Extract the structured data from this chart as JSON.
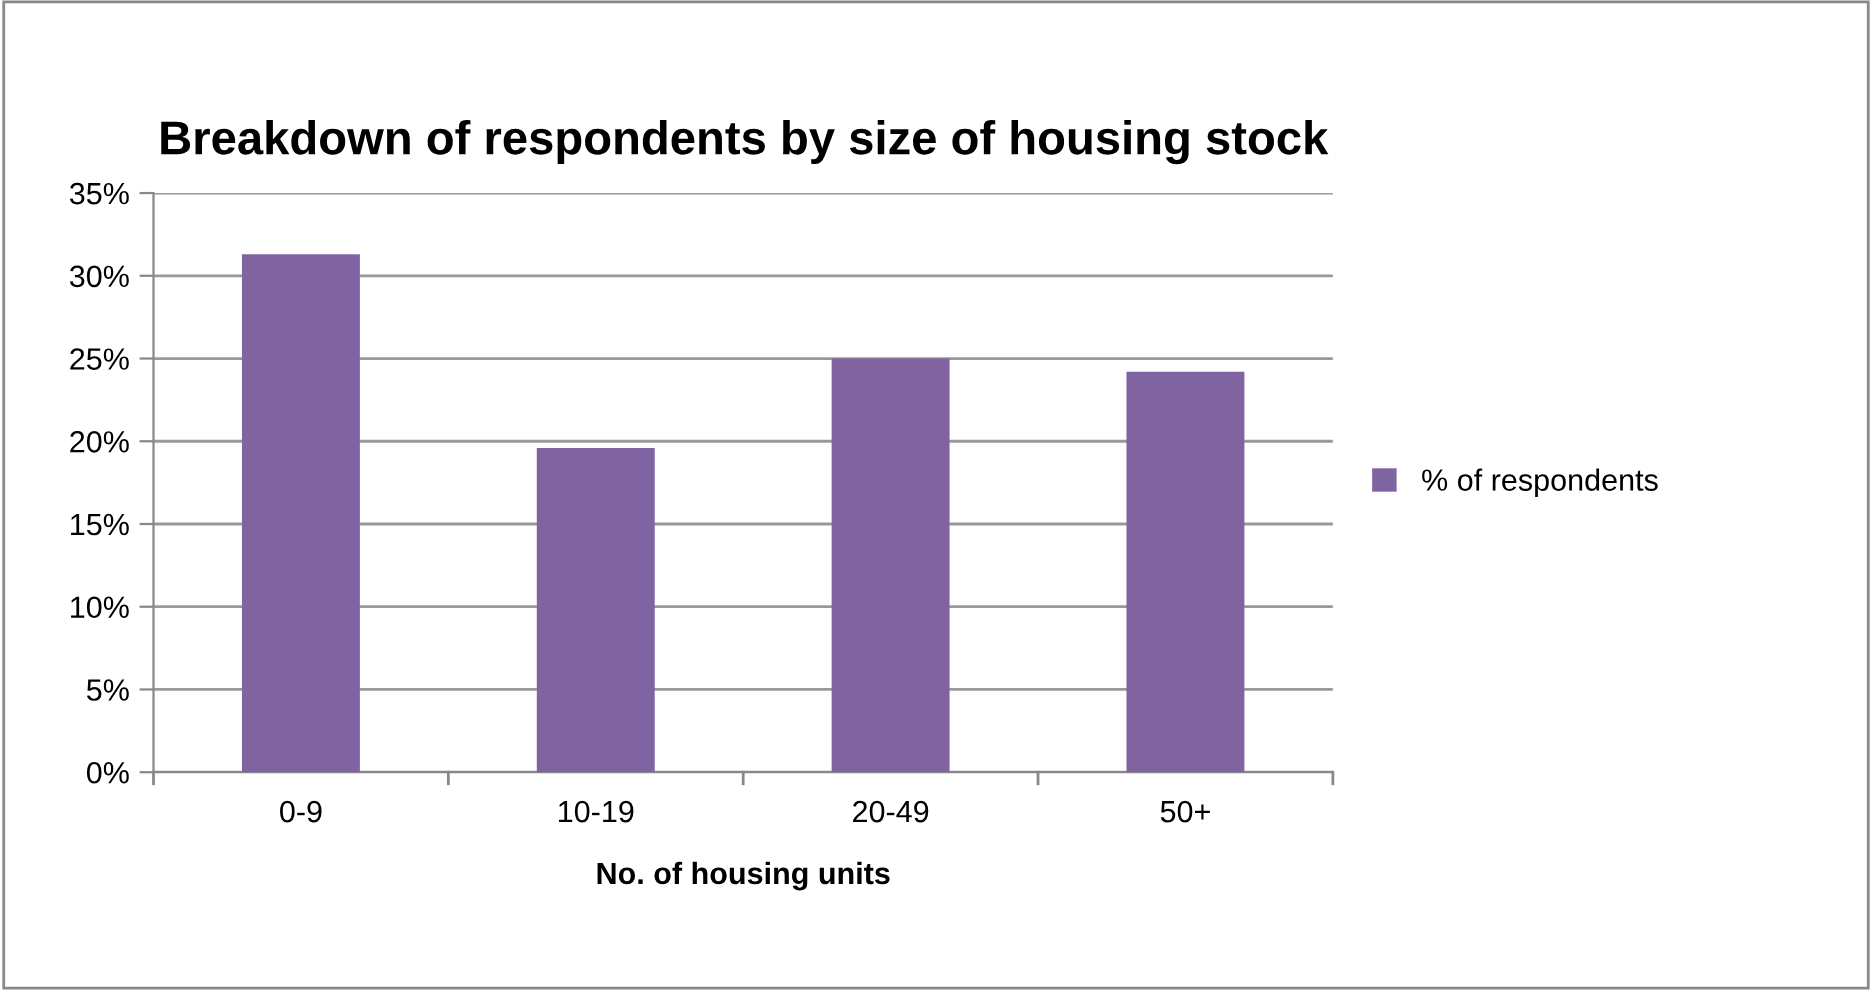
{
  "chart_data": {
    "type": "bar",
    "title": "Breakdown of respondents by size of housing stock",
    "xlabel": "No. of housing units",
    "categories": [
      "0-9",
      "10-19",
      "20-49",
      "50+"
    ],
    "series": [
      {
        "name": "% of respondents",
        "color": "#8064a2",
        "values": [
          31.3,
          19.6,
          25.0,
          24.2
        ]
      }
    ],
    "ylim": [
      0,
      35
    ],
    "yticks": [
      {
        "value": 0,
        "label": "0%"
      },
      {
        "value": 5,
        "label": "5%"
      },
      {
        "value": 10,
        "label": "10%"
      },
      {
        "value": 15,
        "label": "15%"
      },
      {
        "value": 20,
        "label": "20%"
      },
      {
        "value": 25,
        "label": "25%"
      },
      {
        "value": 30,
        "label": "30%"
      },
      {
        "value": 35,
        "label": "35%"
      }
    ],
    "grid": "y",
    "legend": "right"
  }
}
